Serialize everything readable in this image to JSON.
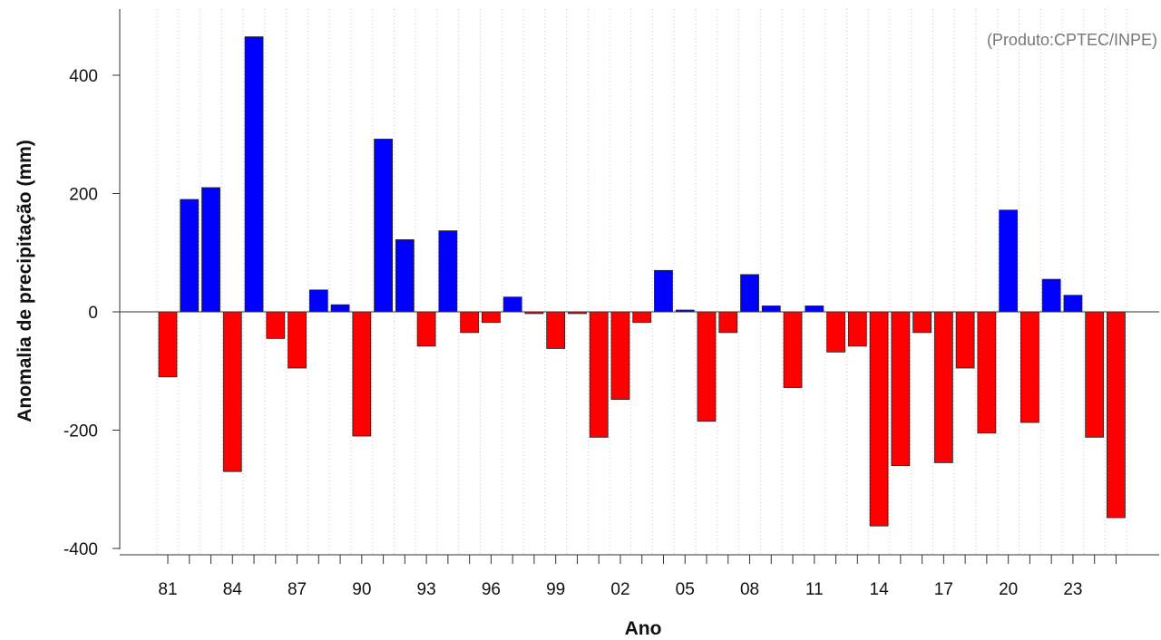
{
  "chart_data": {
    "type": "bar",
    "title": "",
    "credit": "(Produto:CPTEC/INPE)",
    "xlabel": "Ano",
    "ylabel": "Anomalia de precipitação (mm)",
    "ylim": [
      -405,
      515
    ],
    "y_ticks": [
      -400,
      -200,
      0,
      200,
      400
    ],
    "y_tick_labels": [
      "-400",
      "-200",
      "0",
      "200",
      "400"
    ],
    "x_tick_labels": [
      "81",
      "84",
      "87",
      "90",
      "93",
      "96",
      "99",
      "02",
      "05",
      "08",
      "11",
      "14",
      "17",
      "20",
      "23"
    ],
    "grid": "vertical-dotted",
    "colors": {
      "positive": "#0000ff",
      "negative": "#ff0000",
      "edge": "#222222",
      "grid": "#c8c8c8"
    },
    "categories": [
      "1981",
      "1982",
      "1983",
      "1984",
      "1985",
      "1986",
      "1987",
      "1988",
      "1989",
      "1990",
      "1991",
      "1992",
      "1993",
      "1994",
      "1995",
      "1996",
      "1997",
      "1998",
      "1999",
      "2000",
      "2001",
      "2002",
      "2003",
      "2004",
      "2005",
      "2006",
      "2007",
      "2008",
      "2009",
      "2010",
      "2011",
      "2012",
      "2013",
      "2014",
      "2015",
      "2016",
      "2017",
      "2018",
      "2019",
      "2020",
      "2021",
      "2022",
      "2023",
      "2024",
      "2025"
    ],
    "values": [
      -110,
      190,
      210,
      -270,
      465,
      -45,
      -95,
      37,
      12,
      -210,
      292,
      122,
      -58,
      137,
      -35,
      -18,
      25,
      -3,
      -62,
      -3,
      -212,
      -148,
      -18,
      70,
      3,
      -185,
      -35,
      63,
      10,
      -128,
      10,
      -68,
      -58,
      -362,
      -260,
      -35,
      -255,
      -95,
      -205,
      172,
      -187,
      55,
      28,
      -212,
      -348
    ]
  }
}
